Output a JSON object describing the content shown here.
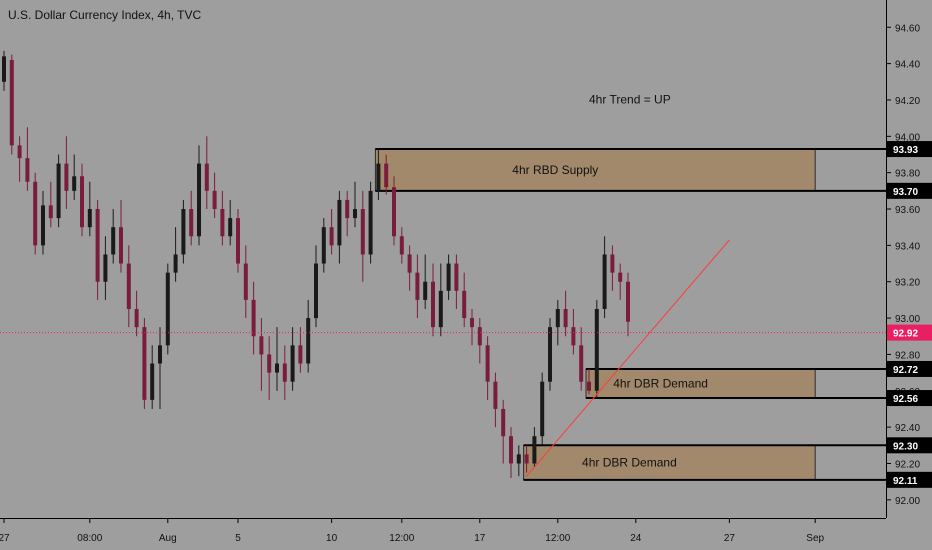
{
  "header": {
    "title": "U.S. Dollar Currency Index, 4h, TVC"
  },
  "chart_data": {
    "type": "candlestick",
    "ylim": [
      91.9,
      94.75
    ],
    "price_ticks": [
      "94.60",
      "94.40",
      "94.20",
      "94.00",
      "93.80",
      "93.60",
      "93.40",
      "93.20",
      "93.00",
      "92.80",
      "92.60",
      "92.40",
      "92.20",
      "92.00"
    ],
    "time_ticks": [
      {
        "label": "27",
        "x": 0
      },
      {
        "label": "08:00",
        "x": 11
      },
      {
        "label": "Aug",
        "x": 21
      },
      {
        "label": "5",
        "x": 30
      },
      {
        "label": "10",
        "x": 42
      },
      {
        "label": "12:00",
        "x": 51
      },
      {
        "label": "17",
        "x": 61
      },
      {
        "label": "12:00",
        "x": 71
      },
      {
        "label": "24",
        "x": 81
      },
      {
        "label": "27",
        "x": 93
      },
      {
        "label": "Sep",
        "x": 104
      }
    ],
    "last_price": {
      "value": 92.92,
      "label": "92.92",
      "color": "#e91e63"
    },
    "zones": [
      {
        "label": "4hr RBD Supply",
        "top": 93.93,
        "bottom": 93.7,
        "x_start": 48,
        "x_end": 104,
        "top_label": "93.93",
        "bottom_label": "93.70"
      },
      {
        "label": "4hr DBR Demand",
        "top": 92.72,
        "bottom": 92.56,
        "x_start": 75,
        "x_end": 104,
        "top_label": "92.72",
        "bottom_label": "92.56"
      },
      {
        "label": "4hr DBR Demand",
        "top": 92.3,
        "bottom": 92.11,
        "x_start": 67,
        "x_end": 104,
        "top_label": "92.30",
        "bottom_label": "92.11"
      }
    ],
    "trendline": {
      "x1": 67,
      "y1": 92.13,
      "x2": 93,
      "y2": 93.43,
      "color": "#ff3b3b"
    },
    "annotation": {
      "text": "4hr Trend = UP",
      "x": 75,
      "y": 94.18
    },
    "candles": [
      [
        0,
        94.3,
        94.44,
        94.47,
        94.25
      ],
      [
        1,
        94.42,
        93.95,
        94.45,
        93.9
      ],
      [
        2,
        93.95,
        93.88,
        94.0,
        93.75
      ],
      [
        3,
        93.88,
        93.75,
        94.05,
        93.7
      ],
      [
        4,
        93.75,
        93.4,
        93.8,
        93.35
      ],
      [
        5,
        93.4,
        93.62,
        93.7,
        93.35
      ],
      [
        6,
        93.62,
        93.55,
        93.75,
        93.5
      ],
      [
        7,
        93.55,
        93.85,
        93.9,
        93.5
      ],
      [
        8,
        93.85,
        93.7,
        94.0,
        93.6
      ],
      [
        9,
        93.7,
        93.78,
        93.9,
        93.65
      ],
      [
        10,
        93.78,
        93.5,
        93.85,
        93.45
      ],
      [
        11,
        93.5,
        93.6,
        93.75,
        93.45
      ],
      [
        12,
        93.6,
        93.2,
        93.65,
        93.1
      ],
      [
        13,
        93.2,
        93.35,
        93.45,
        93.1
      ],
      [
        14,
        93.35,
        93.5,
        93.6,
        93.3
      ],
      [
        15,
        93.5,
        93.3,
        93.65,
        93.25
      ],
      [
        16,
        93.3,
        93.05,
        93.4,
        92.95
      ],
      [
        17,
        93.05,
        92.95,
        93.15,
        92.9
      ],
      [
        18,
        92.95,
        92.55,
        93.0,
        92.5
      ],
      [
        19,
        92.55,
        92.75,
        92.85,
        92.5
      ],
      [
        20,
        92.75,
        92.85,
        92.95,
        92.5
      ],
      [
        21,
        92.85,
        93.25,
        93.3,
        92.8
      ],
      [
        22,
        93.25,
        93.35,
        93.5,
        93.2
      ],
      [
        23,
        93.35,
        93.6,
        93.65,
        93.3
      ],
      [
        24,
        93.6,
        93.45,
        93.7,
        93.4
      ],
      [
        25,
        93.45,
        93.85,
        93.95,
        93.4
      ],
      [
        26,
        93.85,
        93.7,
        94.0,
        93.6
      ],
      [
        27,
        93.7,
        93.6,
        93.8,
        93.55
      ],
      [
        28,
        93.6,
        93.45,
        93.7,
        93.4
      ],
      [
        29,
        93.45,
        93.55,
        93.65,
        93.4
      ],
      [
        30,
        93.55,
        93.3,
        93.6,
        93.25
      ],
      [
        31,
        93.3,
        93.1,
        93.4,
        93.0
      ],
      [
        32,
        93.1,
        92.9,
        93.2,
        92.8
      ],
      [
        33,
        92.9,
        92.8,
        93.0,
        92.6
      ],
      [
        34,
        92.8,
        92.7,
        92.9,
        92.55
      ],
      [
        35,
        92.7,
        92.75,
        92.95,
        92.6
      ],
      [
        36,
        92.75,
        92.65,
        92.85,
        92.55
      ],
      [
        37,
        92.65,
        92.85,
        92.95,
        92.6
      ],
      [
        38,
        92.85,
        92.75,
        92.95,
        92.7
      ],
      [
        39,
        92.75,
        93.0,
        93.1,
        92.7
      ],
      [
        40,
        93.0,
        93.3,
        93.4,
        92.95
      ],
      [
        41,
        93.3,
        93.5,
        93.55,
        93.25
      ],
      [
        42,
        93.5,
        93.4,
        93.6,
        93.35
      ],
      [
        43,
        93.4,
        93.65,
        93.7,
        93.3
      ],
      [
        44,
        93.65,
        93.55,
        93.7,
        93.45
      ],
      [
        45,
        93.55,
        93.6,
        93.75,
        93.5
      ],
      [
        46,
        93.6,
        93.35,
        93.7,
        93.2
      ],
      [
        47,
        93.35,
        93.7,
        93.75,
        93.3
      ],
      [
        48,
        93.7,
        93.85,
        93.93,
        93.65
      ],
      [
        49,
        93.85,
        93.72,
        93.9,
        93.68
      ],
      [
        50,
        93.72,
        93.45,
        93.78,
        93.4
      ],
      [
        51,
        93.45,
        93.35,
        93.5,
        93.3
      ],
      [
        52,
        93.35,
        93.25,
        93.4,
        93.15
      ],
      [
        53,
        93.25,
        93.1,
        93.35,
        93.0
      ],
      [
        54,
        93.1,
        93.2,
        93.35,
        93.05
      ],
      [
        55,
        93.2,
        92.95,
        93.3,
        92.9
      ],
      [
        56,
        92.95,
        93.15,
        93.3,
        92.9
      ],
      [
        57,
        93.15,
        93.3,
        93.35,
        93.1
      ],
      [
        58,
        93.3,
        93.15,
        93.35,
        93.05
      ],
      [
        59,
        93.15,
        93.0,
        93.25,
        92.95
      ],
      [
        60,
        93.0,
        92.95,
        93.05,
        92.85
      ],
      [
        61,
        92.95,
        92.85,
        93.0,
        92.75
      ],
      [
        62,
        92.85,
        92.65,
        92.9,
        92.55
      ],
      [
        63,
        92.65,
        92.5,
        92.7,
        92.4
      ],
      [
        64,
        92.5,
        92.35,
        92.55,
        92.2
      ],
      [
        65,
        92.35,
        92.2,
        92.4,
        92.12
      ],
      [
        66,
        92.2,
        92.25,
        92.3,
        92.13
      ],
      [
        67,
        92.25,
        92.2,
        92.3,
        92.15
      ],
      [
        68,
        92.2,
        92.35,
        92.4,
        92.18
      ],
      [
        69,
        92.35,
        92.65,
        92.7,
        92.3
      ],
      [
        70,
        92.65,
        92.95,
        93.0,
        92.6
      ],
      [
        71,
        92.95,
        93.05,
        93.1,
        92.85
      ],
      [
        72,
        93.05,
        92.95,
        93.15,
        92.9
      ],
      [
        73,
        92.95,
        92.85,
        93.05,
        92.8
      ],
      [
        74,
        92.85,
        92.65,
        92.95,
        92.6
      ],
      [
        75,
        92.65,
        92.6,
        92.72,
        92.58
      ],
      [
        76,
        92.6,
        93.05,
        93.1,
        92.56
      ],
      [
        77,
        93.05,
        93.35,
        93.45,
        93.0
      ],
      [
        78,
        93.35,
        93.25,
        93.4,
        93.15
      ],
      [
        79,
        93.25,
        93.2,
        93.3,
        93.1
      ],
      [
        80,
        93.2,
        92.98,
        93.25,
        92.9
      ]
    ]
  }
}
